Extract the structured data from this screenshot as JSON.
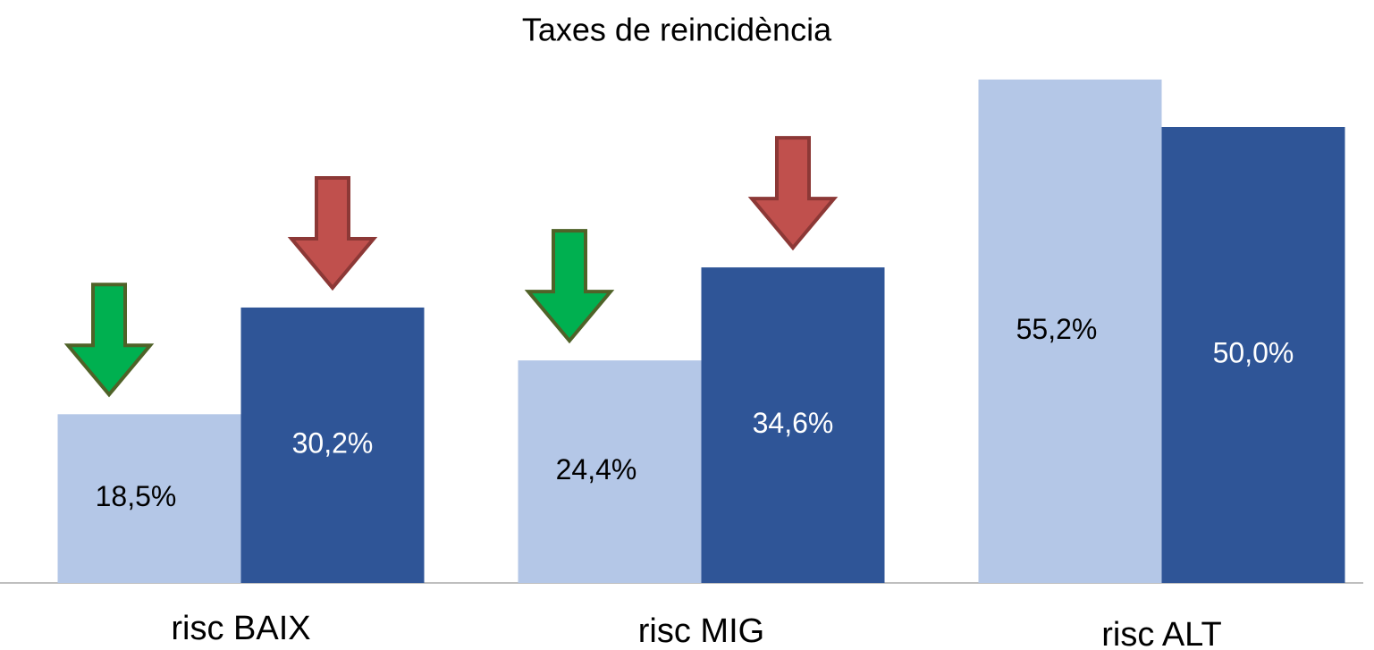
{
  "chart_data": {
    "type": "bar",
    "title": "Taxes de reincidència",
    "categories": [
      "risc BAIX",
      "risc MIG",
      "risc ALT"
    ],
    "series": [
      {
        "color": "#b4c7e7",
        "values": [
          18.5,
          24.4,
          55.2
        ],
        "value_labels": [
          "18,5%",
          "24,4%",
          "55,2%"
        ]
      },
      {
        "color": "#2f5597",
        "values": [
          30.2,
          34.6,
          50.0
        ],
        "value_labels": [
          "30,2%",
          "34,6%",
          "50,0%"
        ]
      }
    ],
    "ylim": [
      0,
      60
    ]
  }
}
